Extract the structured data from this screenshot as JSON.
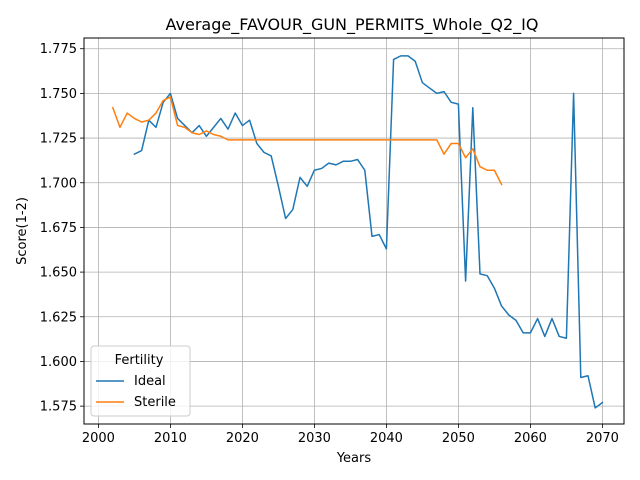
{
  "chart_data": {
    "type": "line",
    "title": "Average_FAVOUR_GUN_PERMITS_Whole_Q2_IQ",
    "xlabel": "Years",
    "ylabel": "Score(1-2)",
    "xlim": [
      1998,
      2073
    ],
    "ylim": [
      1.565,
      1.781
    ],
    "xticks": [
      2000,
      2010,
      2020,
      2030,
      2040,
      2050,
      2060,
      2070
    ],
    "yticks": [
      1.575,
      1.6,
      1.625,
      1.65,
      1.675,
      1.7,
      1.725,
      1.75,
      1.775
    ],
    "ytick_labels": [
      "1.575",
      "1.600",
      "1.625",
      "1.650",
      "1.675",
      "1.700",
      "1.725",
      "1.750",
      "1.775"
    ],
    "grid": true,
    "legend": {
      "title": "Fertility",
      "placement": "lower-left"
    },
    "series": [
      {
        "name": "Ideal",
        "color": "#1f77b4",
        "x": [
          2005,
          2006,
          2007,
          2008,
          2009,
          2010,
          2011,
          2012,
          2013,
          2014,
          2015,
          2016,
          2017,
          2018,
          2019,
          2020,
          2021,
          2022,
          2023,
          2024,
          2025,
          2026,
          2027,
          2028,
          2029,
          2030,
          2031,
          2032,
          2033,
          2034,
          2035,
          2036,
          2037,
          2038,
          2039,
          2040,
          2041,
          2042,
          2043,
          2044,
          2045,
          2046,
          2047,
          2048,
          2049,
          2050,
          2051,
          2052,
          2053,
          2054,
          2055,
          2056,
          2057,
          2058,
          2059,
          2060,
          2061,
          2062,
          2063,
          2064,
          2065,
          2066,
          2067,
          2068,
          2069,
          2070
        ],
        "y": [
          1.716,
          1.718,
          1.735,
          1.731,
          1.745,
          1.75,
          1.736,
          1.732,
          1.728,
          1.732,
          1.726,
          1.731,
          1.736,
          1.73,
          1.739,
          1.732,
          1.735,
          1.722,
          1.717,
          1.715,
          1.698,
          1.68,
          1.685,
          1.703,
          1.698,
          1.707,
          1.708,
          1.711,
          1.71,
          1.712,
          1.712,
          1.713,
          1.707,
          1.67,
          1.671,
          1.663,
          1.769,
          1.771,
          1.771,
          1.768,
          1.756,
          1.753,
          1.75,
          1.751,
          1.745,
          1.744,
          1.645,
          1.742,
          1.649,
          1.648,
          1.641,
          1.631,
          1.626,
          1.623,
          1.616,
          1.616,
          1.624,
          1.614,
          1.624,
          1.614,
          1.613,
          1.75,
          1.591,
          1.592,
          1.574,
          1.577
        ]
      },
      {
        "name": "Sterile",
        "color": "#ff7f0e",
        "x": [
          2002,
          2003,
          2004,
          2005,
          2006,
          2007,
          2008,
          2009,
          2010,
          2011,
          2012,
          2013,
          2014,
          2015,
          2016,
          2017,
          2018,
          2019,
          2020,
          2021,
          2022,
          2023,
          2024,
          2025,
          2026,
          2027,
          2028,
          2029,
          2030,
          2031,
          2032,
          2033,
          2034,
          2035,
          2036,
          2037,
          2038,
          2039,
          2040,
          2041,
          2042,
          2043,
          2044,
          2045,
          2046,
          2047,
          2048,
          2049,
          2050,
          2051,
          2052,
          2053,
          2054,
          2055,
          2056
        ],
        "y": [
          1.742,
          1.731,
          1.739,
          1.736,
          1.734,
          1.735,
          1.739,
          1.746,
          1.748,
          1.732,
          1.731,
          1.728,
          1.727,
          1.729,
          1.727,
          1.726,
          1.724,
          1.724,
          1.724,
          1.724,
          1.724,
          1.724,
          1.724,
          1.724,
          1.724,
          1.724,
          1.724,
          1.724,
          1.724,
          1.724,
          1.724,
          1.724,
          1.724,
          1.724,
          1.724,
          1.724,
          1.724,
          1.724,
          1.724,
          1.724,
          1.724,
          1.724,
          1.724,
          1.724,
          1.724,
          1.724,
          1.716,
          1.722,
          1.722,
          1.714,
          1.719,
          1.709,
          1.707,
          1.707,
          1.699
        ]
      }
    ]
  }
}
